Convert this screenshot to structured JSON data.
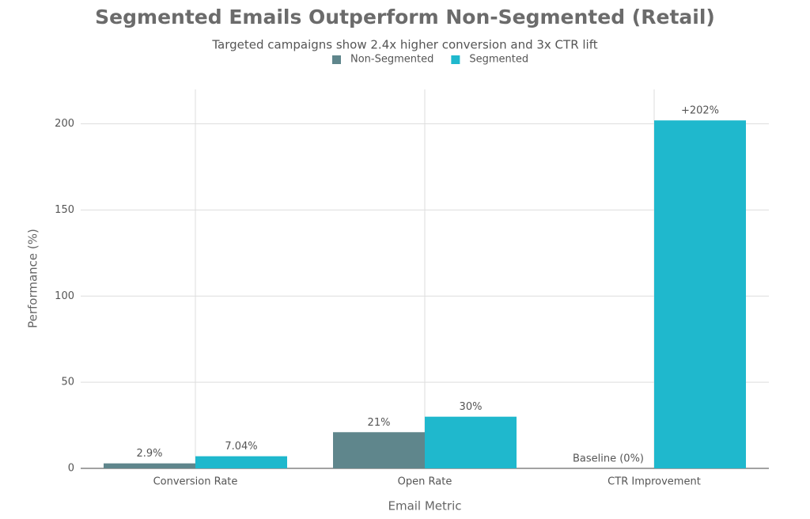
{
  "chart_data": {
    "type": "bar",
    "title": "Segmented Emails Outperform Non-Segmented (Retail)",
    "subtitle": "Targeted campaigns show 2.4x higher conversion and 3x CTR lift",
    "x_label": "Email Metric",
    "y_label": "Performance (%)",
    "categories": [
      "Conversion Rate",
      "Open Rate",
      "CTR Improvement"
    ],
    "series": [
      {
        "name": "Non-Segmented",
        "color": "#5f868c",
        "values": [
          2.9,
          21,
          0
        ],
        "value_labels": [
          "2.9%",
          "21%",
          "Baseline (0%)"
        ]
      },
      {
        "name": "Segmented",
        "color": "#1fb8cd",
        "values": [
          7.04,
          30,
          202
        ],
        "value_labels": [
          "7.04%",
          "30%",
          "+202%"
        ]
      }
    ],
    "ylim": [
      0,
      220
    ],
    "yticks": [
      0,
      50,
      100,
      150,
      200
    ],
    "grid": true,
    "legend": "top"
  }
}
